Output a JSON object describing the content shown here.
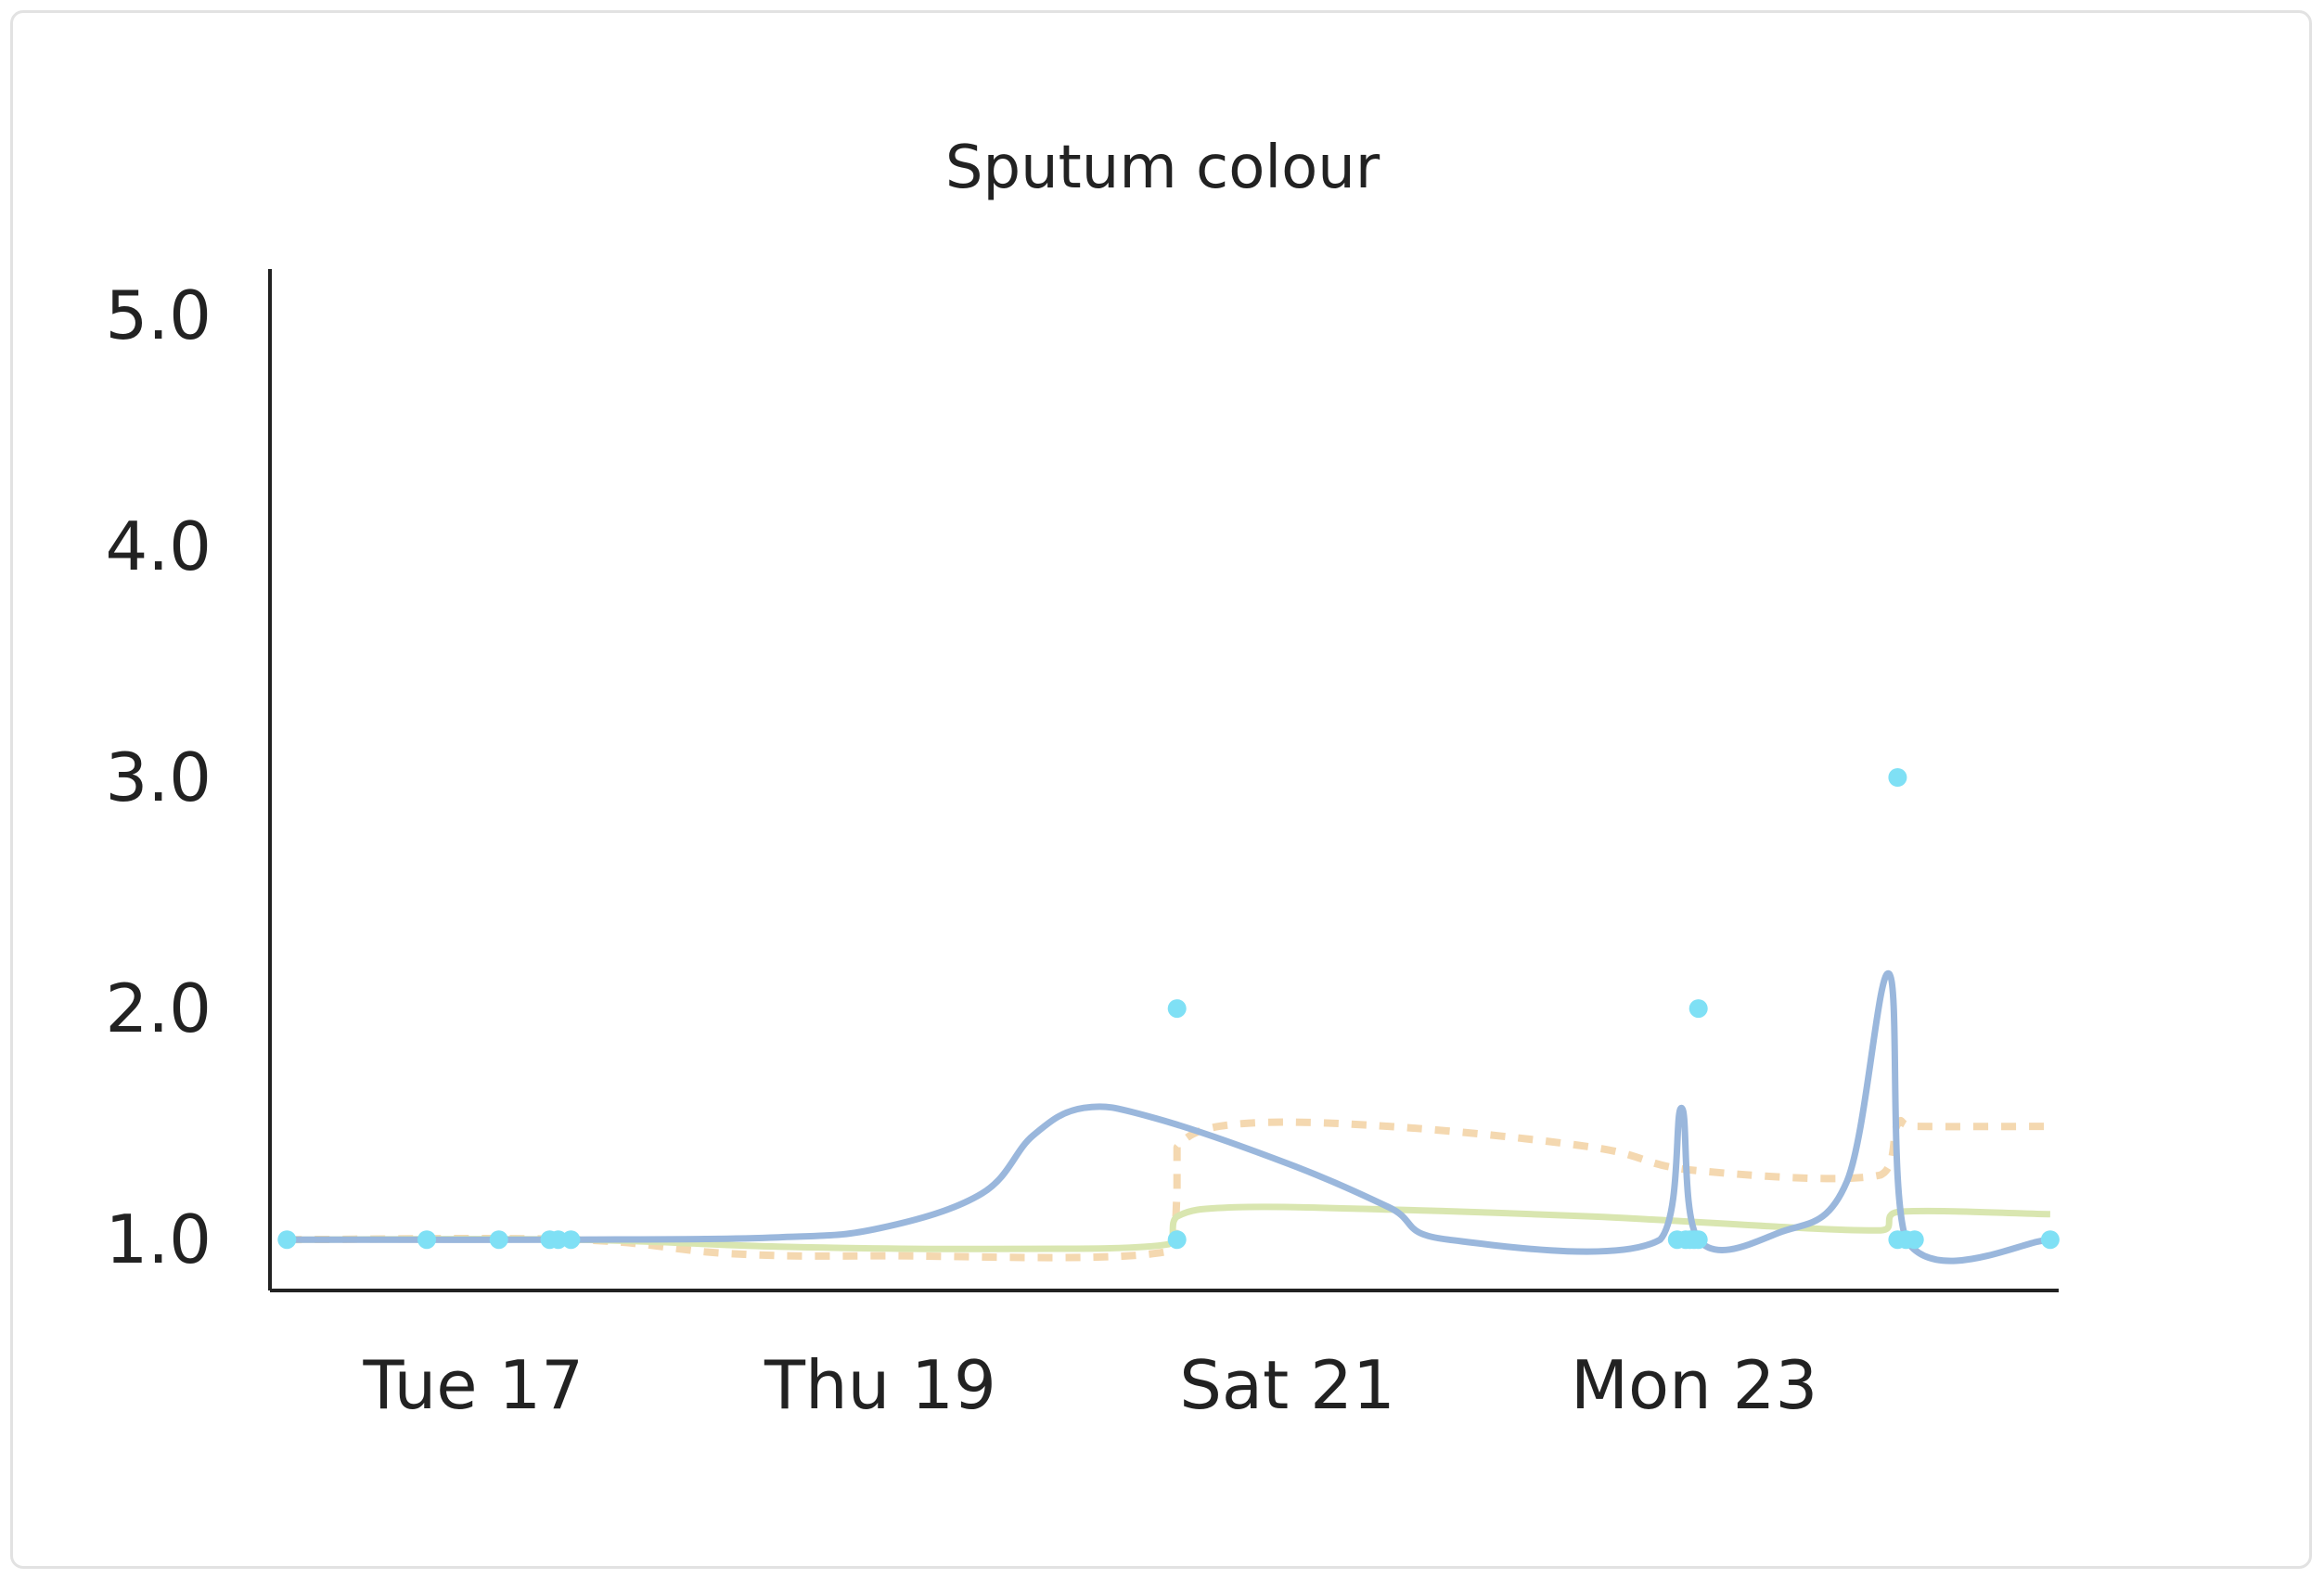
{
  "chart_data": {
    "type": "line",
    "title": "Sputum colour",
    "xlabel": "",
    "ylabel": "",
    "x_range": [
      "2024-12-16T12:00",
      "2024-12-25T07:00"
    ],
    "ylim": [
      0.78,
      5.2
    ],
    "yticks": [
      1.0,
      2.0,
      3.0,
      4.0,
      5.0
    ],
    "ytick_labels": [
      "1.0",
      "2.0",
      "3.0",
      "4.0",
      "5.0"
    ],
    "xticks": [
      "2024-12-17T12:00",
      "2024-12-19T12:00",
      "2024-12-21T12:00",
      "2024-12-23T12:00"
    ],
    "xtick_labels": [
      "Tue 17",
      "Thu 19",
      "Sat 21",
      "Mon 23"
    ],
    "grid": false,
    "legend": "none",
    "colors": {
      "points": "#7fe0f5",
      "trend": "#9ab7dc",
      "average": "#d9e6b0",
      "dashed": "#f4d8b0",
      "axis": "#222222"
    },
    "points": [
      {
        "x": "2024-12-16T14:00",
        "y": 1.0
      },
      {
        "x": "2024-12-17T06:30",
        "y": 1.0
      },
      {
        "x": "2024-12-17T15:00",
        "y": 1.0
      },
      {
        "x": "2024-12-17T21:00",
        "y": 1.0
      },
      {
        "x": "2024-12-17T22:00",
        "y": 1.0
      },
      {
        "x": "2024-12-17T23:30",
        "y": 1.0
      },
      {
        "x": "2024-12-20T23:00",
        "y": 2.0
      },
      {
        "x": "2024-12-20T23:00",
        "y": 1.0
      },
      {
        "x": "2024-12-23T10:00",
        "y": 1.0
      },
      {
        "x": "2024-12-23T11:00",
        "y": 1.0
      },
      {
        "x": "2024-12-23T11:30",
        "y": 1.0
      },
      {
        "x": "2024-12-23T12:00",
        "y": 1.0
      },
      {
        "x": "2024-12-23T12:30",
        "y": 2.0
      },
      {
        "x": "2024-12-23T12:30",
        "y": 1.0
      },
      {
        "x": "2024-12-24T12:00",
        "y": 3.0
      },
      {
        "x": "2024-12-24T12:00",
        "y": 1.0
      },
      {
        "x": "2024-12-24T13:00",
        "y": 1.0
      },
      {
        "x": "2024-12-24T14:00",
        "y": 1.0
      },
      {
        "x": "2024-12-25T06:00",
        "y": 1.0
      }
    ],
    "series": [
      {
        "style": "solid",
        "color": "#9ab7dc",
        "points": [
          {
            "x": "2024-12-16T14:00",
            "y": 1.0
          },
          {
            "x": "2024-12-18T00:00",
            "y": 1.0
          },
          {
            "x": "2024-12-19T00:00",
            "y": 1.01
          },
          {
            "x": "2024-12-19T12:00",
            "y": 1.05
          },
          {
            "x": "2024-12-20T00:00",
            "y": 1.2
          },
          {
            "x": "2024-12-20T06:00",
            "y": 1.45
          },
          {
            "x": "2024-12-20T12:00",
            "y": 1.57
          },
          {
            "x": "2024-12-20T20:00",
            "y": 1.53
          },
          {
            "x": "2024-12-21T12:00",
            "y": 1.33
          },
          {
            "x": "2024-12-22T00:00",
            "y": 1.14
          },
          {
            "x": "2024-12-22T07:00",
            "y": 1.0
          },
          {
            "x": "2024-12-23T08:00",
            "y": 1.0
          },
          {
            "x": "2024-12-23T10:30",
            "y": 1.57
          },
          {
            "x": "2024-12-23T12:30",
            "y": 1.0
          },
          {
            "x": "2024-12-23T22:00",
            "y": 1.03
          },
          {
            "x": "2024-12-24T06:00",
            "y": 1.25
          },
          {
            "x": "2024-12-24T11:00",
            "y": 2.15
          },
          {
            "x": "2024-12-24T13:00",
            "y": 1.0
          },
          {
            "x": "2024-12-25T06:00",
            "y": 1.0
          }
        ]
      },
      {
        "style": "dashed",
        "color": "#f4d8b0",
        "points": [
          {
            "x": "2024-12-16T14:00",
            "y": 1.0
          },
          {
            "x": "2024-12-18T00:00",
            "y": 1.0
          },
          {
            "x": "2024-12-18T18:00",
            "y": 0.94
          },
          {
            "x": "2024-12-19T12:00",
            "y": 0.93
          },
          {
            "x": "2024-12-20T22:00",
            "y": 0.95
          },
          {
            "x": "2024-12-20T23:00",
            "y": 1.2
          },
          {
            "x": "2024-12-20T23:00",
            "y": 1.4
          },
          {
            "x": "2024-12-21T06:00",
            "y": 1.5
          },
          {
            "x": "2024-12-22T00:00",
            "y": 1.49
          },
          {
            "x": "2024-12-23T00:00",
            "y": 1.4
          },
          {
            "x": "2024-12-23T12:00",
            "y": 1.3
          },
          {
            "x": "2024-12-24T10:00",
            "y": 1.28
          },
          {
            "x": "2024-12-24T12:00",
            "y": 1.5
          },
          {
            "x": "2024-12-24T14:00",
            "y": 1.49
          },
          {
            "x": "2024-12-25T06:00",
            "y": 1.49
          }
        ]
      },
      {
        "style": "solid",
        "color": "#d9e6b0",
        "points": [
          {
            "x": "2024-12-16T14:00",
            "y": 1.0
          },
          {
            "x": "2024-12-18T00:00",
            "y": 1.0
          },
          {
            "x": "2024-12-19T00:00",
            "y": 0.97
          },
          {
            "x": "2024-12-20T00:00",
            "y": 0.96
          },
          {
            "x": "2024-12-20T22:00",
            "y": 0.98
          },
          {
            "x": "2024-12-20T23:00",
            "y": 1.1
          },
          {
            "x": "2024-12-21T06:00",
            "y": 1.14
          },
          {
            "x": "2024-12-22T00:00",
            "y": 1.13
          },
          {
            "x": "2024-12-23T00:00",
            "y": 1.1
          },
          {
            "x": "2024-12-24T10:00",
            "y": 1.04
          },
          {
            "x": "2024-12-24T12:00",
            "y": 1.12
          },
          {
            "x": "2024-12-25T06:00",
            "y": 1.11
          }
        ]
      }
    ]
  }
}
